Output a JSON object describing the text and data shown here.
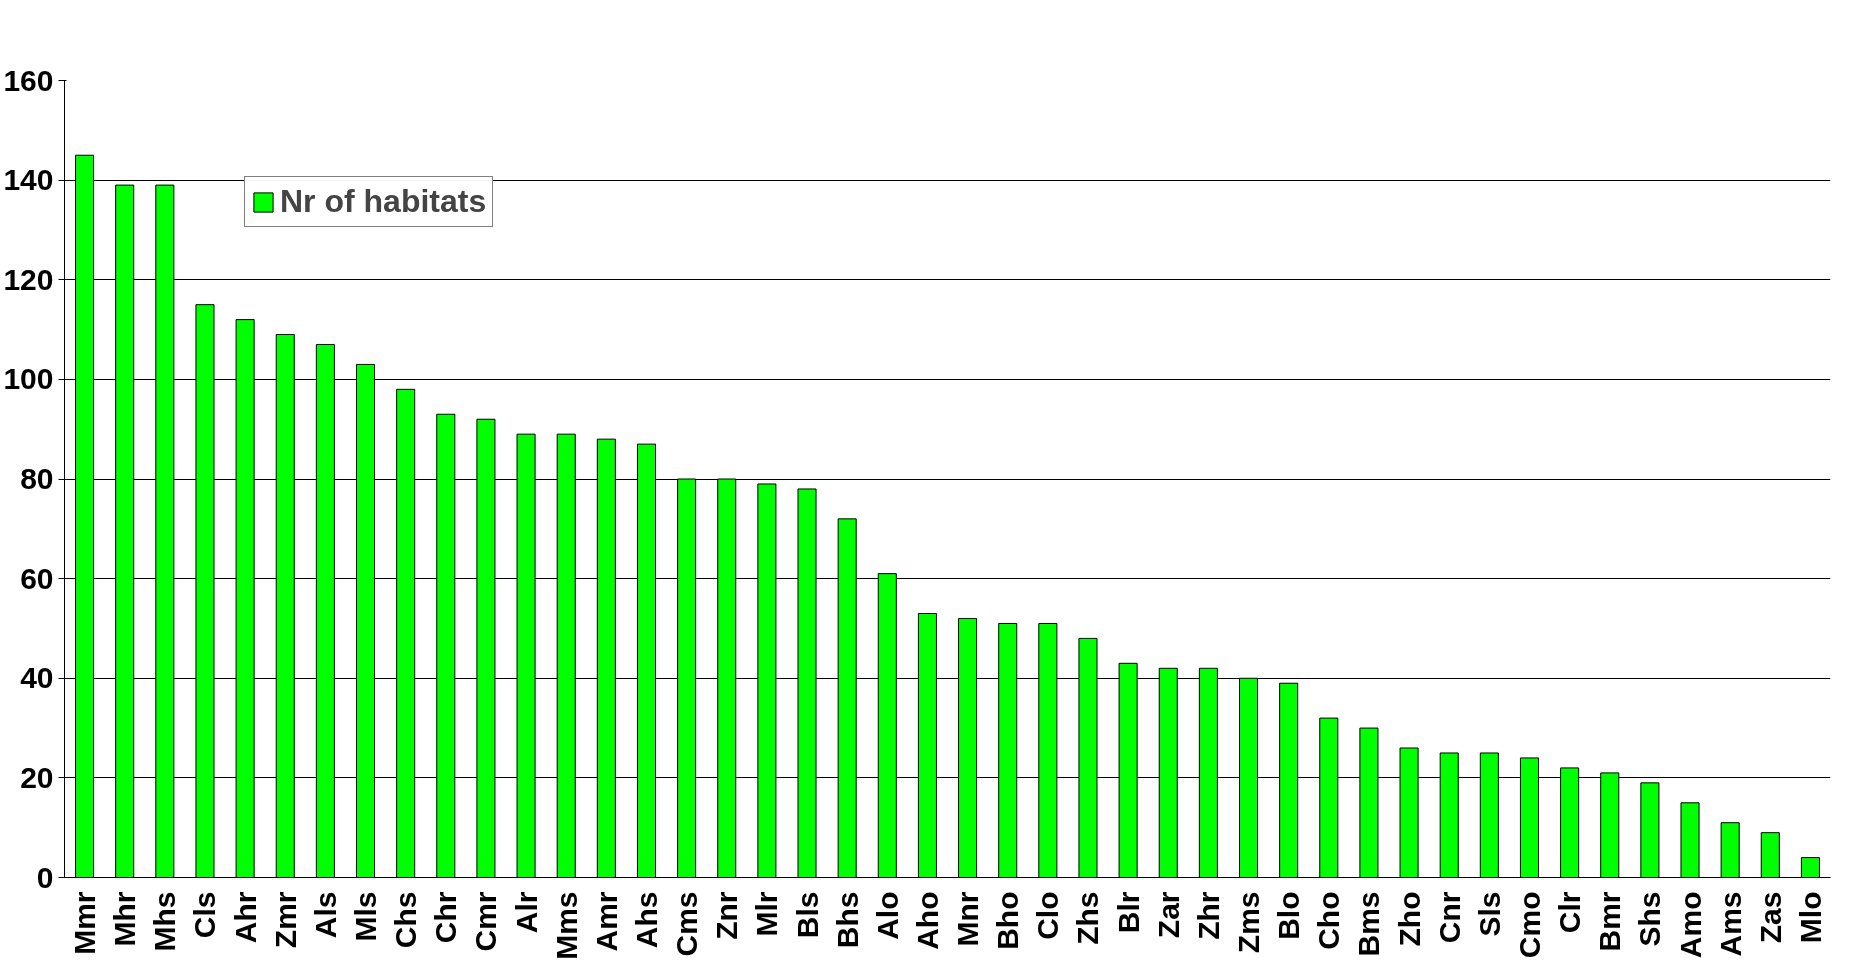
{
  "chart_data": {
    "type": "bar",
    "categories": [
      "Mmr",
      "Mhr",
      "Mhs",
      "Cls",
      "Ahr",
      "Zmr",
      "Als",
      "Mls",
      "Chs",
      "Chr",
      "Cmr",
      "Alr",
      "Mms",
      "Amr",
      "Ahs",
      "Cms",
      "Znr",
      "Mlr",
      "Bls",
      "Bhs",
      "Alo",
      "Aho",
      "Mnr",
      "Bho",
      "Clo",
      "Zhs",
      "Blr",
      "Zar",
      "Zhr",
      "Zms",
      "Blo",
      "Cho",
      "Bms",
      "Zho",
      "Cnr",
      "Sls",
      "Cmo",
      "Clr",
      "Bmr",
      "Shs",
      "Amo",
      "Ams",
      "Zas",
      "Mlo"
    ],
    "series": [
      {
        "name": "Nr of habitats",
        "color": "#00ff00",
        "values": [
          145,
          139,
          139,
          115,
          112,
          109,
          107,
          103,
          98,
          93,
          92,
          89,
          89,
          88,
          87,
          80,
          80,
          79,
          78,
          72,
          61,
          53,
          52,
          51,
          51,
          48,
          43,
          42,
          42,
          40,
          39,
          32,
          30,
          26,
          25,
          25,
          24,
          22,
          21,
          19,
          15,
          11,
          9,
          4
        ]
      }
    ],
    "ylim": [
      0,
      160
    ],
    "yticks": [
      0,
      20,
      40,
      60,
      80,
      100,
      120,
      140,
      160
    ],
    "grid": "y",
    "legend": "top left"
  }
}
